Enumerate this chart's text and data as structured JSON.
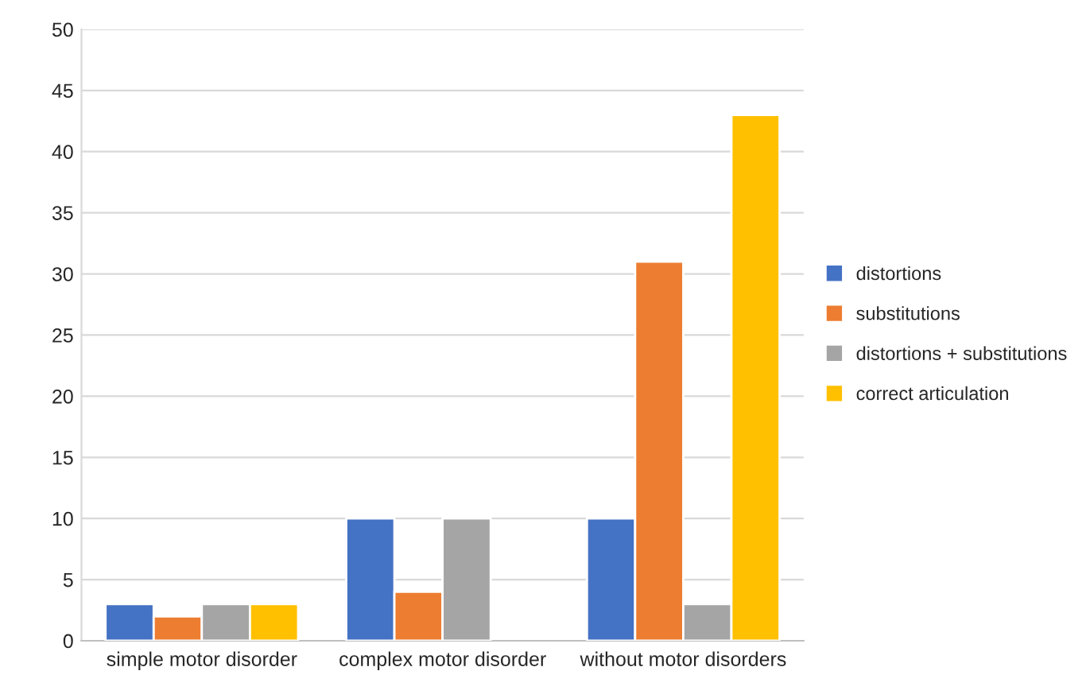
{
  "chart_data": {
    "type": "bar",
    "categories": [
      "simple motor disorder",
      "complex motor disorder",
      "without motor disorders"
    ],
    "series": [
      {
        "name": "distortions",
        "color": "#4472c4",
        "values": [
          3,
          10,
          10
        ]
      },
      {
        "name": "substitutions",
        "color": "#ed7d31",
        "values": [
          2,
          4,
          31
        ]
      },
      {
        "name": "distortions + substitutions",
        "color": "#a5a5a5",
        "values": [
          3,
          10,
          3
        ]
      },
      {
        "name": "correct articulation",
        "color": "#ffc000",
        "values": [
          3,
          null,
          43
        ]
      }
    ],
    "ylim": [
      0,
      50
    ],
    "yticks": [
      0,
      5,
      10,
      15,
      20,
      25,
      30,
      35,
      40,
      45,
      50
    ],
    "grid": "y",
    "legend": "right"
  }
}
